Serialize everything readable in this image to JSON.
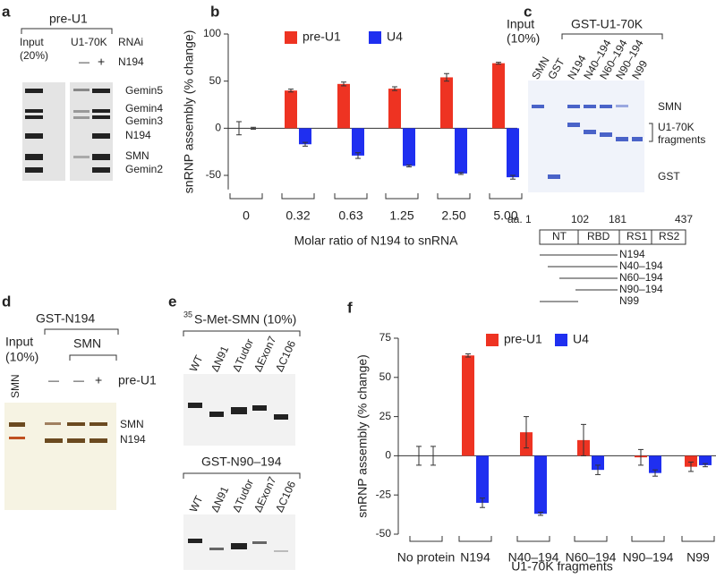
{
  "chart_data": [
    {
      "type": "bar",
      "panel": "b",
      "ylabel": "snRNP assembly (% change)",
      "xlabel": "Molar ratio of N194 to snRNA",
      "categories": [
        "0",
        "0.32",
        "0.63",
        "1.25",
        "2.50",
        "5.00"
      ],
      "series": [
        {
          "name": "pre-U1",
          "color": "#ee3322",
          "values": [
            0,
            40,
            47,
            42,
            54,
            69
          ],
          "errors": [
            7,
            1.5,
            2,
            2,
            4,
            1
          ]
        },
        {
          "name": "U4",
          "color": "#1f2ff0",
          "values": [
            0,
            -17,
            -29,
            -40,
            -48,
            -52
          ],
          "errors": [
            1,
            2,
            3,
            1,
            1,
            2
          ]
        }
      ],
      "ylim": [
        -65,
        100
      ],
      "yticks": [
        -50,
        0,
        50,
        100
      ]
    },
    {
      "type": "bar",
      "panel": "f",
      "ylabel": "snRNP assembly (% change)",
      "xlabel": "U1-70K fragments",
      "categories": [
        "No protein",
        "N194",
        "N40–194",
        "N60–194",
        "N90–194",
        "N99"
      ],
      "series": [
        {
          "name": "pre-U1",
          "color": "#ee3322",
          "values": [
            0,
            64,
            15,
            10,
            -1,
            -7
          ],
          "errors": [
            6,
            1,
            10,
            10,
            5,
            3
          ]
        },
        {
          "name": "U4",
          "color": "#1f2ff0",
          "values": [
            0,
            -30,
            -37,
            -9,
            -11,
            -6
          ],
          "errors": [
            6,
            3,
            1,
            3,
            2,
            1
          ]
        }
      ],
      "ylim": [
        -50,
        75
      ],
      "yticks": [
        -50,
        -25,
        0,
        25,
        50,
        75
      ]
    }
  ],
  "panel_a": {
    "label": "a",
    "title": "pre-U1",
    "input": [
      "Input",
      "(20%)"
    ],
    "rnai_target": "U1-70K",
    "rnai": "RNAi",
    "n194": "N194",
    "minus": "—",
    "plus": "+",
    "bands": [
      "Gemin5",
      "Gemin4",
      "Gemin3",
      "N194",
      "SMN",
      "Gemin2"
    ]
  },
  "panel_c": {
    "label": "c",
    "input": [
      "Input",
      "(10%)"
    ],
    "title": "GST-U1-70K",
    "lanes": [
      "SMN",
      "GST",
      "N194",
      "N40–194",
      "N60–194",
      "N90–194",
      "N99"
    ],
    "bands": [
      "SMN",
      "U1-70K",
      "fragments",
      "GST"
    ],
    "aa": [
      "aa. 1",
      "102",
      "181",
      "437"
    ],
    "domains": [
      "NT",
      "RBD",
      "RS1",
      "RS2"
    ],
    "constructs": [
      "N194",
      "N40–194",
      "N60–194",
      "N90–194",
      "N99"
    ]
  },
  "panel_d": {
    "label": "d",
    "title": "GST-N194",
    "input": [
      "Input",
      "(10%)"
    ],
    "smn": "SMN",
    "lane": "SMN",
    "signs": [
      "—",
      "—",
      "+"
    ],
    "pre_u1": "pre-U1",
    "bands": [
      "SMN",
      "N194"
    ]
  },
  "panel_e": {
    "label": "e",
    "isotope": "35",
    "title": "S-Met-SMN (10%)",
    "title2": "GST-N90–194",
    "lanes": [
      "WT",
      "ΔN91",
      "ΔTudor",
      "ΔExon7",
      "ΔC106"
    ]
  }
}
